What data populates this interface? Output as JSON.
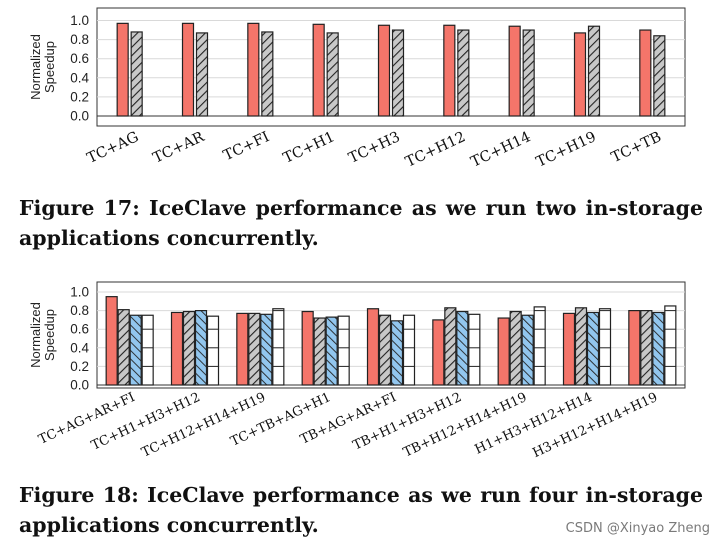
{
  "colors": {
    "s1": "#F4756A",
    "s2": "#C8C8C8",
    "s3": "#92C6EE",
    "s4": "#FFFFFF"
  },
  "chart_data": [
    {
      "type": "bar",
      "ylabel": "Normalized Speedup",
      "ylim": [
        0,
        1.0
      ],
      "yticks": [
        "0.0",
        "0.2",
        "0.4",
        "0.6",
        "0.8",
        "1.0"
      ],
      "categories": [
        "TC+AG",
        "TC+AR",
        "TC+FI",
        "TC+H1",
        "TC+H3",
        "TC+H12",
        "TC+H14",
        "TC+H19",
        "TC+TB"
      ],
      "series": [
        {
          "values": [
            0.97,
            0.97,
            0.97,
            0.96,
            0.95,
            0.95,
            0.94,
            0.87,
            0.9
          ]
        },
        {
          "values": [
            0.88,
            0.87,
            0.88,
            0.87,
            0.9,
            0.9,
            0.9,
            0.94,
            0.84
          ]
        }
      ]
    },
    {
      "type": "bar",
      "ylabel": "Normalized Speedup",
      "ylim": [
        0,
        1.0
      ],
      "yticks": [
        "0.0",
        "0.2",
        "0.4",
        "0.6",
        "0.8",
        "1.0"
      ],
      "categories": [
        "TC+AG+AR+FI",
        "TC+H1+H3+H12",
        "TC+H12+H14+H19",
        "TC+TB+AG+H1",
        "TB+AG+AR+FI",
        "TB+H1+H3+H12",
        "TB+H12+H14+H19",
        "H1+H3+H12+H14",
        "H3+H12+H14+H19"
      ],
      "series": [
        {
          "values": [
            0.95,
            0.78,
            0.77,
            0.79,
            0.82,
            0.7,
            0.72,
            0.77,
            0.8
          ]
        },
        {
          "values": [
            0.81,
            0.79,
            0.77,
            0.72,
            0.75,
            0.83,
            0.79,
            0.83,
            0.8
          ]
        },
        {
          "values": [
            0.75,
            0.8,
            0.76,
            0.73,
            0.69,
            0.79,
            0.75,
            0.78,
            0.78
          ]
        },
        {
          "values": [
            0.75,
            0.74,
            0.82,
            0.74,
            0.75,
            0.76,
            0.84,
            0.82,
            0.85
          ]
        }
      ]
    }
  ],
  "captions": {
    "fig17_line1": "Figure 17: IceClave performance as we run two in-storage",
    "fig17_line2": "applications concurrently.",
    "fig18_line1": "Figure 18: IceClave performance as we run four in-storage",
    "fig18_line2": "applications concurrently."
  },
  "watermark": "CSDN @Xinyao Zheng"
}
